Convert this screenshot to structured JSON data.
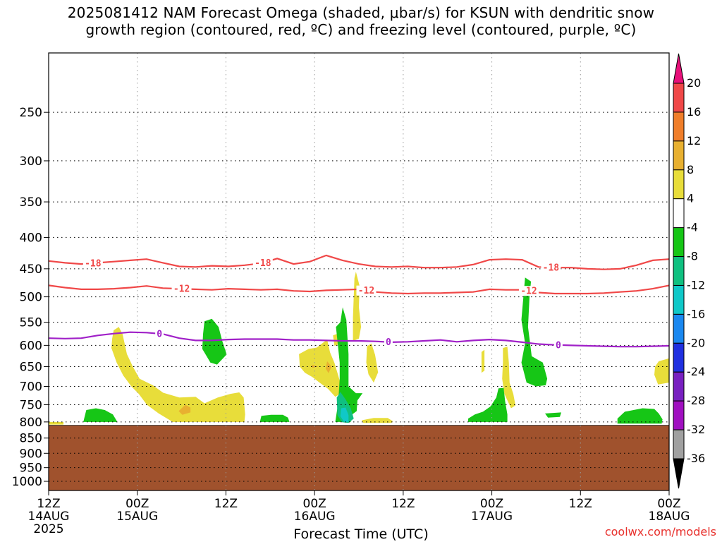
{
  "title": "2025081412 NAM Forecast Omega (shaded, μbar/s) for KSUN with dendritic snow\ngrowth region (contoured, red, ºC) and freezing level (contoured, purple, ºC)",
  "credit": "coolwx.com/models",
  "chart_data": {
    "type": "time-height cross section",
    "xlabel": "Forecast Time (UTC)",
    "x_ticks": [
      {
        "hour": 0,
        "label": "12Z",
        "sub": "14AUG",
        "sub2": "2025"
      },
      {
        "hour": 12,
        "label": "00Z",
        "sub": "15AUG",
        "sub2": ""
      },
      {
        "hour": 24,
        "label": "12Z",
        "sub": "",
        "sub2": ""
      },
      {
        "hour": 36,
        "label": "00Z",
        "sub": "16AUG",
        "sub2": ""
      },
      {
        "hour": 48,
        "label": "12Z",
        "sub": "",
        "sub2": ""
      },
      {
        "hour": 60,
        "label": "00Z",
        "sub": "17AUG",
        "sub2": ""
      },
      {
        "hour": 72,
        "label": "12Z",
        "sub": "",
        "sub2": ""
      },
      {
        "hour": 84,
        "label": "00Z",
        "sub": "18AUG",
        "sub2": ""
      }
    ],
    "xlim": [
      0,
      84
    ],
    "y_ticks": [
      250,
      300,
      350,
      400,
      450,
      500,
      550,
      600,
      650,
      700,
      750,
      800,
      850,
      900,
      950,
      1000
    ],
    "ylim_hpa": [
      200,
      1035
    ],
    "y_scale": "log-pressure",
    "surface_pressure_hpa": 810,
    "contours": [
      {
        "label": "-18",
        "color": "#f04848",
        "values_hpa": [
          437,
          440,
          442,
          440,
          438,
          436,
          434,
          440,
          446,
          447,
          445,
          446,
          444,
          441,
          433,
          442,
          438,
          428,
          436,
          442,
          446,
          447,
          446,
          448,
          448,
          447,
          443,
          435,
          434,
          435,
          447,
          448,
          448,
          450,
          451,
          450,
          444,
          436,
          434
        ]
      },
      {
        "label": "-12",
        "color": "#f04848",
        "values_hpa": [
          479,
          483,
          486,
          486,
          485,
          483,
          480,
          484,
          485,
          486,
          487,
          485,
          486,
          487,
          486,
          489,
          490,
          488,
          487,
          486,
          491,
          493,
          494,
          493,
          493,
          492,
          491,
          486,
          487,
          487,
          492,
          494,
          494,
          494,
          493,
          491,
          489,
          485,
          479
        ]
      },
      {
        "label": "0",
        "color": "#a020c8",
        "values_hpa": [
          584,
          585,
          584,
          578,
          574,
          571,
          572,
          575,
          584,
          589,
          589,
          587,
          586,
          586,
          586,
          588,
          588,
          589,
          590,
          590,
          591,
          593,
          592,
          590,
          588,
          592,
          589,
          587,
          589,
          593,
          597,
          599,
          600,
          601,
          602,
          603,
          603,
          602,
          601
        ]
      }
    ],
    "colorbar": {
      "units": "μbar/s",
      "labels": [
        "20",
        "16",
        "12",
        "8",
        "4",
        "-4",
        "-8",
        "-12",
        "-16",
        "-20",
        "-24",
        "-28",
        "-32",
        "-36"
      ],
      "colors": {
        "above_20": "#e8107a",
        "16_20": "#f04848",
        "12_16": "#f07e2a",
        "8_12": "#e8b030",
        "4_8": "#e8dd3a",
        "-4_4": "#ffffff",
        "-8_-4": "#16c616",
        "-12_-8": "#10c080",
        "-16_-12": "#10c8c8",
        "-20_-16": "#1a88f0",
        "-24_-20": "#2030e0",
        "-28_-24": "#7820c0",
        "-32_-28": "#a010c0",
        "-36_-32": "#a0a0a0",
        "below_-36": "#000000"
      }
    },
    "omega_regions": [
      {
        "band": "4_8",
        "points": [
          [
            8.6,
            585
          ],
          [
            8.8,
            567
          ],
          [
            9.5,
            560
          ],
          [
            10.0,
            575
          ],
          [
            10.6,
            620
          ],
          [
            11.4,
            650
          ],
          [
            12.3,
            680
          ],
          [
            14.1,
            697
          ],
          [
            15.5,
            717
          ],
          [
            17.7,
            730
          ],
          [
            19.9,
            728
          ],
          [
            21.1,
            746
          ],
          [
            22.9,
            730
          ],
          [
            24.6,
            720
          ],
          [
            25.8,
            716
          ],
          [
            26.4,
            730
          ],
          [
            26.6,
            778
          ],
          [
            26.5,
            800
          ],
          [
            16.8,
            800
          ],
          [
            14.9,
            775
          ],
          [
            13.3,
            750
          ],
          [
            12.2,
            720
          ],
          [
            11.2,
            700
          ],
          [
            10.1,
            672
          ],
          [
            9.2,
            640
          ],
          [
            8.5,
            606
          ]
        ]
      },
      {
        "band": "8_12",
        "points": [
          [
            18.5,
            750
          ],
          [
            19.2,
            758
          ],
          [
            19.2,
            772
          ],
          [
            18.1,
            779
          ],
          [
            17.6,
            768
          ]
        ]
      },
      {
        "band": "-8_-4",
        "points": [
          [
            5.1,
            765
          ],
          [
            6.4,
            760
          ],
          [
            7.6,
            765
          ],
          [
            8.7,
            778
          ],
          [
            9.3,
            800
          ],
          [
            4.7,
            800
          ],
          [
            4.9,
            782
          ]
        ]
      },
      {
        "band": "-8_-4",
        "points": [
          [
            21.1,
            548
          ],
          [
            22.1,
            543
          ],
          [
            23.0,
            560
          ],
          [
            23.5,
            590
          ],
          [
            24.1,
            621
          ],
          [
            22.8,
            645
          ],
          [
            21.9,
            640
          ],
          [
            20.8,
            608
          ],
          [
            20.9,
            575
          ]
        ]
      },
      {
        "band": "-8_-4",
        "points": [
          [
            28.8,
            782
          ],
          [
            30.1,
            779
          ],
          [
            31.7,
            779
          ],
          [
            32.4,
            787
          ],
          [
            32.6,
            800
          ],
          [
            28.6,
            800
          ]
        ]
      },
      {
        "band": "4_8",
        "points": [
          [
            33.9,
            620
          ],
          [
            35.2,
            608
          ],
          [
            36.3,
            605
          ],
          [
            37.7,
            587
          ],
          [
            38.1,
            616
          ],
          [
            38.7,
            641
          ],
          [
            39.4,
            685
          ],
          [
            39.6,
            718
          ],
          [
            38.8,
            728
          ],
          [
            37.8,
            706
          ],
          [
            36.6,
            689
          ],
          [
            35.7,
            676
          ],
          [
            34.7,
            665
          ],
          [
            34.0,
            650
          ]
        ]
      },
      {
        "band": "8_12",
        "points": [
          [
            37.7,
            637
          ],
          [
            38.3,
            650
          ],
          [
            37.9,
            666
          ],
          [
            37.5,
            655
          ]
        ]
      },
      {
        "band": "8_12",
        "points": [
          [
            35.6,
            645
          ],
          [
            36.5,
            650
          ],
          [
            35.7,
            653
          ]
        ]
      },
      {
        "band": "4_8",
        "points": [
          [
            38.5,
            578
          ],
          [
            39.0,
            575
          ],
          [
            39.2,
            598
          ],
          [
            38.7,
            601
          ]
        ]
      },
      {
        "band": "-8_-4",
        "points": [
          [
            38.9,
            560
          ],
          [
            39.5,
            550
          ],
          [
            39.8,
            520
          ],
          [
            40.3,
            545
          ],
          [
            40.6,
            620
          ],
          [
            40.6,
            700
          ],
          [
            41.6,
            718
          ],
          [
            42.5,
            718
          ],
          [
            41.8,
            738
          ],
          [
            41.7,
            768
          ],
          [
            40.9,
            781
          ],
          [
            40.9,
            800
          ],
          [
            38.8,
            800
          ],
          [
            39.2,
            744
          ],
          [
            39.4,
            680
          ],
          [
            39.4,
            640
          ]
        ]
      },
      {
        "band": "-12_-8",
        "points": [
          [
            39.0,
            730
          ],
          [
            39.5,
            715
          ],
          [
            40.2,
            735
          ],
          [
            40.9,
            760
          ],
          [
            41.3,
            790
          ],
          [
            40.6,
            803
          ],
          [
            39.7,
            801
          ],
          [
            39.1,
            780
          ]
        ]
      },
      {
        "band": "-16_-12",
        "points": [
          [
            39.6,
            760
          ],
          [
            40.2,
            758
          ],
          [
            40.6,
            780
          ],
          [
            40.6,
            800
          ],
          [
            40.0,
            800
          ],
          [
            39.5,
            783
          ]
        ]
      },
      {
        "band": "4_8",
        "points": [
          [
            41.4,
            466
          ],
          [
            41.6,
            455
          ],
          [
            42.1,
            480
          ],
          [
            42.0,
            520
          ],
          [
            42.3,
            560
          ],
          [
            42.0,
            585
          ],
          [
            41.2,
            590
          ],
          [
            41.2,
            540
          ]
        ]
      },
      {
        "band": "4_8",
        "points": [
          [
            43.1,
            602
          ],
          [
            43.7,
            596
          ],
          [
            44.2,
            622
          ],
          [
            44.6,
            664
          ],
          [
            44.0,
            690
          ],
          [
            43.3,
            669
          ],
          [
            43.0,
            640
          ]
        ]
      },
      {
        "band": "4_8",
        "points": [
          [
            42.4,
            795
          ],
          [
            44.0,
            788
          ],
          [
            45.9,
            788
          ],
          [
            46.6,
            798
          ],
          [
            46.4,
            803
          ],
          [
            42.6,
            803
          ]
        ]
      },
      {
        "band": "4_8",
        "points": [
          [
            58.6,
            615
          ],
          [
            59.0,
            610
          ],
          [
            59.0,
            660
          ],
          [
            58.6,
            665
          ]
        ]
      },
      {
        "band": "4_8",
        "points": [
          [
            61.5,
            606
          ],
          [
            62.1,
            603
          ],
          [
            62.3,
            640
          ],
          [
            62.4,
            690
          ],
          [
            62.9,
            720
          ],
          [
            63.2,
            752
          ],
          [
            62.6,
            760
          ],
          [
            61.7,
            720
          ],
          [
            61.4,
            680
          ],
          [
            61.5,
            640
          ]
        ]
      },
      {
        "band": "-8_-4",
        "points": [
          [
            56.8,
            790
          ],
          [
            57.7,
            778
          ],
          [
            58.8,
            770
          ],
          [
            59.8,
            755
          ],
          [
            60.6,
            730
          ],
          [
            60.9,
            705
          ],
          [
            61.6,
            704
          ],
          [
            61.8,
            740
          ],
          [
            62.1,
            778
          ],
          [
            62.1,
            800
          ],
          [
            56.8,
            800
          ]
        ]
      },
      {
        "band": "-8_-4",
        "points": [
          [
            64.5,
            465
          ],
          [
            65.3,
            472
          ],
          [
            65.1,
            500
          ],
          [
            64.9,
            560
          ],
          [
            65.4,
            625
          ],
          [
            66.9,
            640
          ],
          [
            67.5,
            680
          ],
          [
            67.3,
            697
          ],
          [
            66.0,
            700
          ],
          [
            64.7,
            690
          ],
          [
            64.0,
            640
          ],
          [
            64.5,
            595
          ],
          [
            64.0,
            545
          ]
        ]
      },
      {
        "band": "-8_-4",
        "points": [
          [
            67.2,
            775
          ],
          [
            69.4,
            772
          ],
          [
            69.2,
            785
          ],
          [
            67.6,
            787
          ]
        ]
      },
      {
        "band": "-8_-4",
        "points": [
          [
            77.0,
            790
          ],
          [
            78.0,
            770
          ],
          [
            80.4,
            760
          ],
          [
            82.0,
            762
          ],
          [
            82.6,
            775
          ],
          [
            83.1,
            792
          ],
          [
            83.0,
            805
          ],
          [
            77.0,
            805
          ]
        ]
      },
      {
        "band": "4_8",
        "points": [
          [
            82.1,
            650
          ],
          [
            82.6,
            637
          ],
          [
            84.0,
            630
          ],
          [
            84.0,
            690
          ],
          [
            82.5,
            695
          ],
          [
            82.0,
            670
          ]
        ]
      },
      {
        "band": "4_8",
        "points": [
          [
            0.0,
            800
          ],
          [
            2.0,
            800
          ],
          [
            2.0,
            808
          ],
          [
            0.0,
            808
          ]
        ]
      }
    ]
  }
}
